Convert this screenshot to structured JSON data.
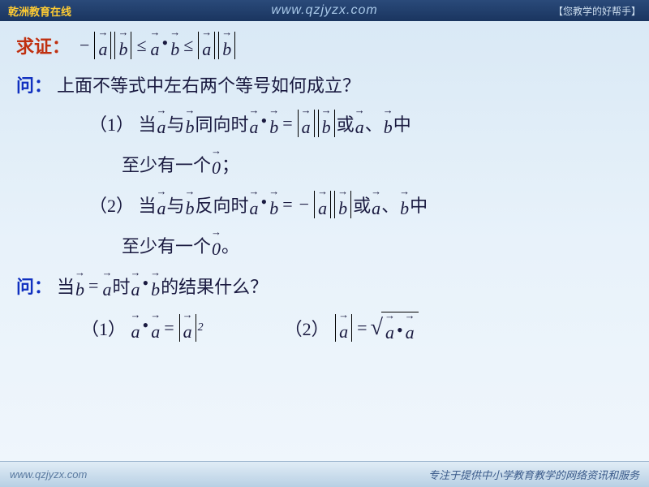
{
  "topbar": {
    "brand": "乾洲教育在线",
    "url": "www.qzjyzx.com",
    "tag": "【您教学的好帮手】"
  },
  "bottombar": {
    "url": "www.qzjyzx.com",
    "slogan": "专注于提供中小学教育教学的网络资讯和服务"
  },
  "labels": {
    "prove": "求证：",
    "ask": "问：",
    "q1": "上面不等式中左右两个等号如何成立？",
    "item1_pre": "（1） 当",
    "with": "与",
    "same_dir": "同向时",
    "or": "或",
    "comma": "、",
    "mid": "中",
    "atleast_one": "至少有一个",
    "semicolon": "；",
    "item2_pre": "（2） 当",
    "opp_dir": "反向时",
    "period": "。",
    "q2_pre": "当",
    "equals": "=",
    "q2_mid": "时",
    "q2_post": "的结果什么？",
    "r1": "（1）",
    "r2": "（2）"
  },
  "colors": {
    "prove_color": "#c03010",
    "ask_color": "#1030c0",
    "text_color": "#1a1a40",
    "bg_top": "#d8e8f5",
    "bg_bottom": "#f0f6fc",
    "bar_bg": "#1a3560"
  },
  "font_sizes": {
    "body": 22,
    "topbar": 13
  }
}
